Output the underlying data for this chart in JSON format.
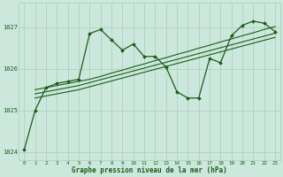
{
  "title": "Graphe pression niveau de la mer (hPa)",
  "background_color": "#cce8dc",
  "grid_color": "#aaccbb",
  "line_color": "#1a5c1a",
  "xlim": [
    -0.5,
    23.5
  ],
  "ylim": [
    1023.8,
    1027.6
  ],
  "yticks": [
    1024,
    1025,
    1026,
    1027
  ],
  "xticks": [
    0,
    1,
    2,
    3,
    4,
    5,
    6,
    7,
    8,
    9,
    10,
    11,
    12,
    13,
    14,
    15,
    16,
    17,
    18,
    19,
    20,
    21,
    22,
    23
  ],
  "line1_x": [
    0,
    1,
    2,
    3,
    4,
    5,
    6,
    7,
    8,
    9,
    10,
    11,
    12,
    13,
    14,
    15,
    16,
    17,
    18,
    19,
    20,
    21,
    22,
    23
  ],
  "line1_y": [
    1024.05,
    1025.0,
    1025.55,
    1025.65,
    1025.7,
    1025.75,
    1026.85,
    1026.95,
    1026.7,
    1026.45,
    1026.6,
    1026.3,
    1026.3,
    1026.05,
    1025.45,
    1025.3,
    1025.3,
    1026.25,
    1026.15,
    1026.8,
    1027.05,
    1027.15,
    1027.1,
    1026.9
  ],
  "line2_x": [
    1,
    2,
    3,
    4,
    5,
    6,
    7,
    8,
    9,
    10,
    11,
    12,
    13,
    14,
    15,
    16,
    17,
    18,
    19,
    20,
    21,
    22,
    23
  ],
  "line2_y": [
    1025.5,
    1025.55,
    1025.6,
    1025.65,
    1025.7,
    1025.75,
    1025.82,
    1025.9,
    1025.97,
    1026.05,
    1026.12,
    1026.2,
    1026.27,
    1026.35,
    1026.42,
    1026.5,
    1026.57,
    1026.65,
    1026.72,
    1026.8,
    1026.87,
    1026.95,
    1027.02
  ],
  "line3_x": [
    1,
    2,
    3,
    4,
    5,
    6,
    7,
    8,
    9,
    10,
    11,
    12,
    13,
    14,
    15,
    16,
    17,
    18,
    19,
    20,
    21,
    22,
    23
  ],
  "line3_y": [
    1025.4,
    1025.45,
    1025.5,
    1025.55,
    1025.6,
    1025.67,
    1025.74,
    1025.81,
    1025.88,
    1025.95,
    1026.02,
    1026.09,
    1026.16,
    1026.23,
    1026.3,
    1026.37,
    1026.44,
    1026.51,
    1026.58,
    1026.65,
    1026.72,
    1026.79,
    1026.86
  ],
  "line4_x": [
    1,
    2,
    3,
    4,
    5,
    6,
    7,
    8,
    9,
    10,
    11,
    12,
    13,
    14,
    15,
    16,
    17,
    18,
    19,
    20,
    21,
    22,
    23
  ],
  "line4_y": [
    1025.3,
    1025.35,
    1025.4,
    1025.45,
    1025.5,
    1025.57,
    1025.64,
    1025.71,
    1025.78,
    1025.85,
    1025.92,
    1025.99,
    1026.06,
    1026.13,
    1026.2,
    1026.27,
    1026.34,
    1026.41,
    1026.48,
    1026.55,
    1026.62,
    1026.69,
    1026.76
  ]
}
